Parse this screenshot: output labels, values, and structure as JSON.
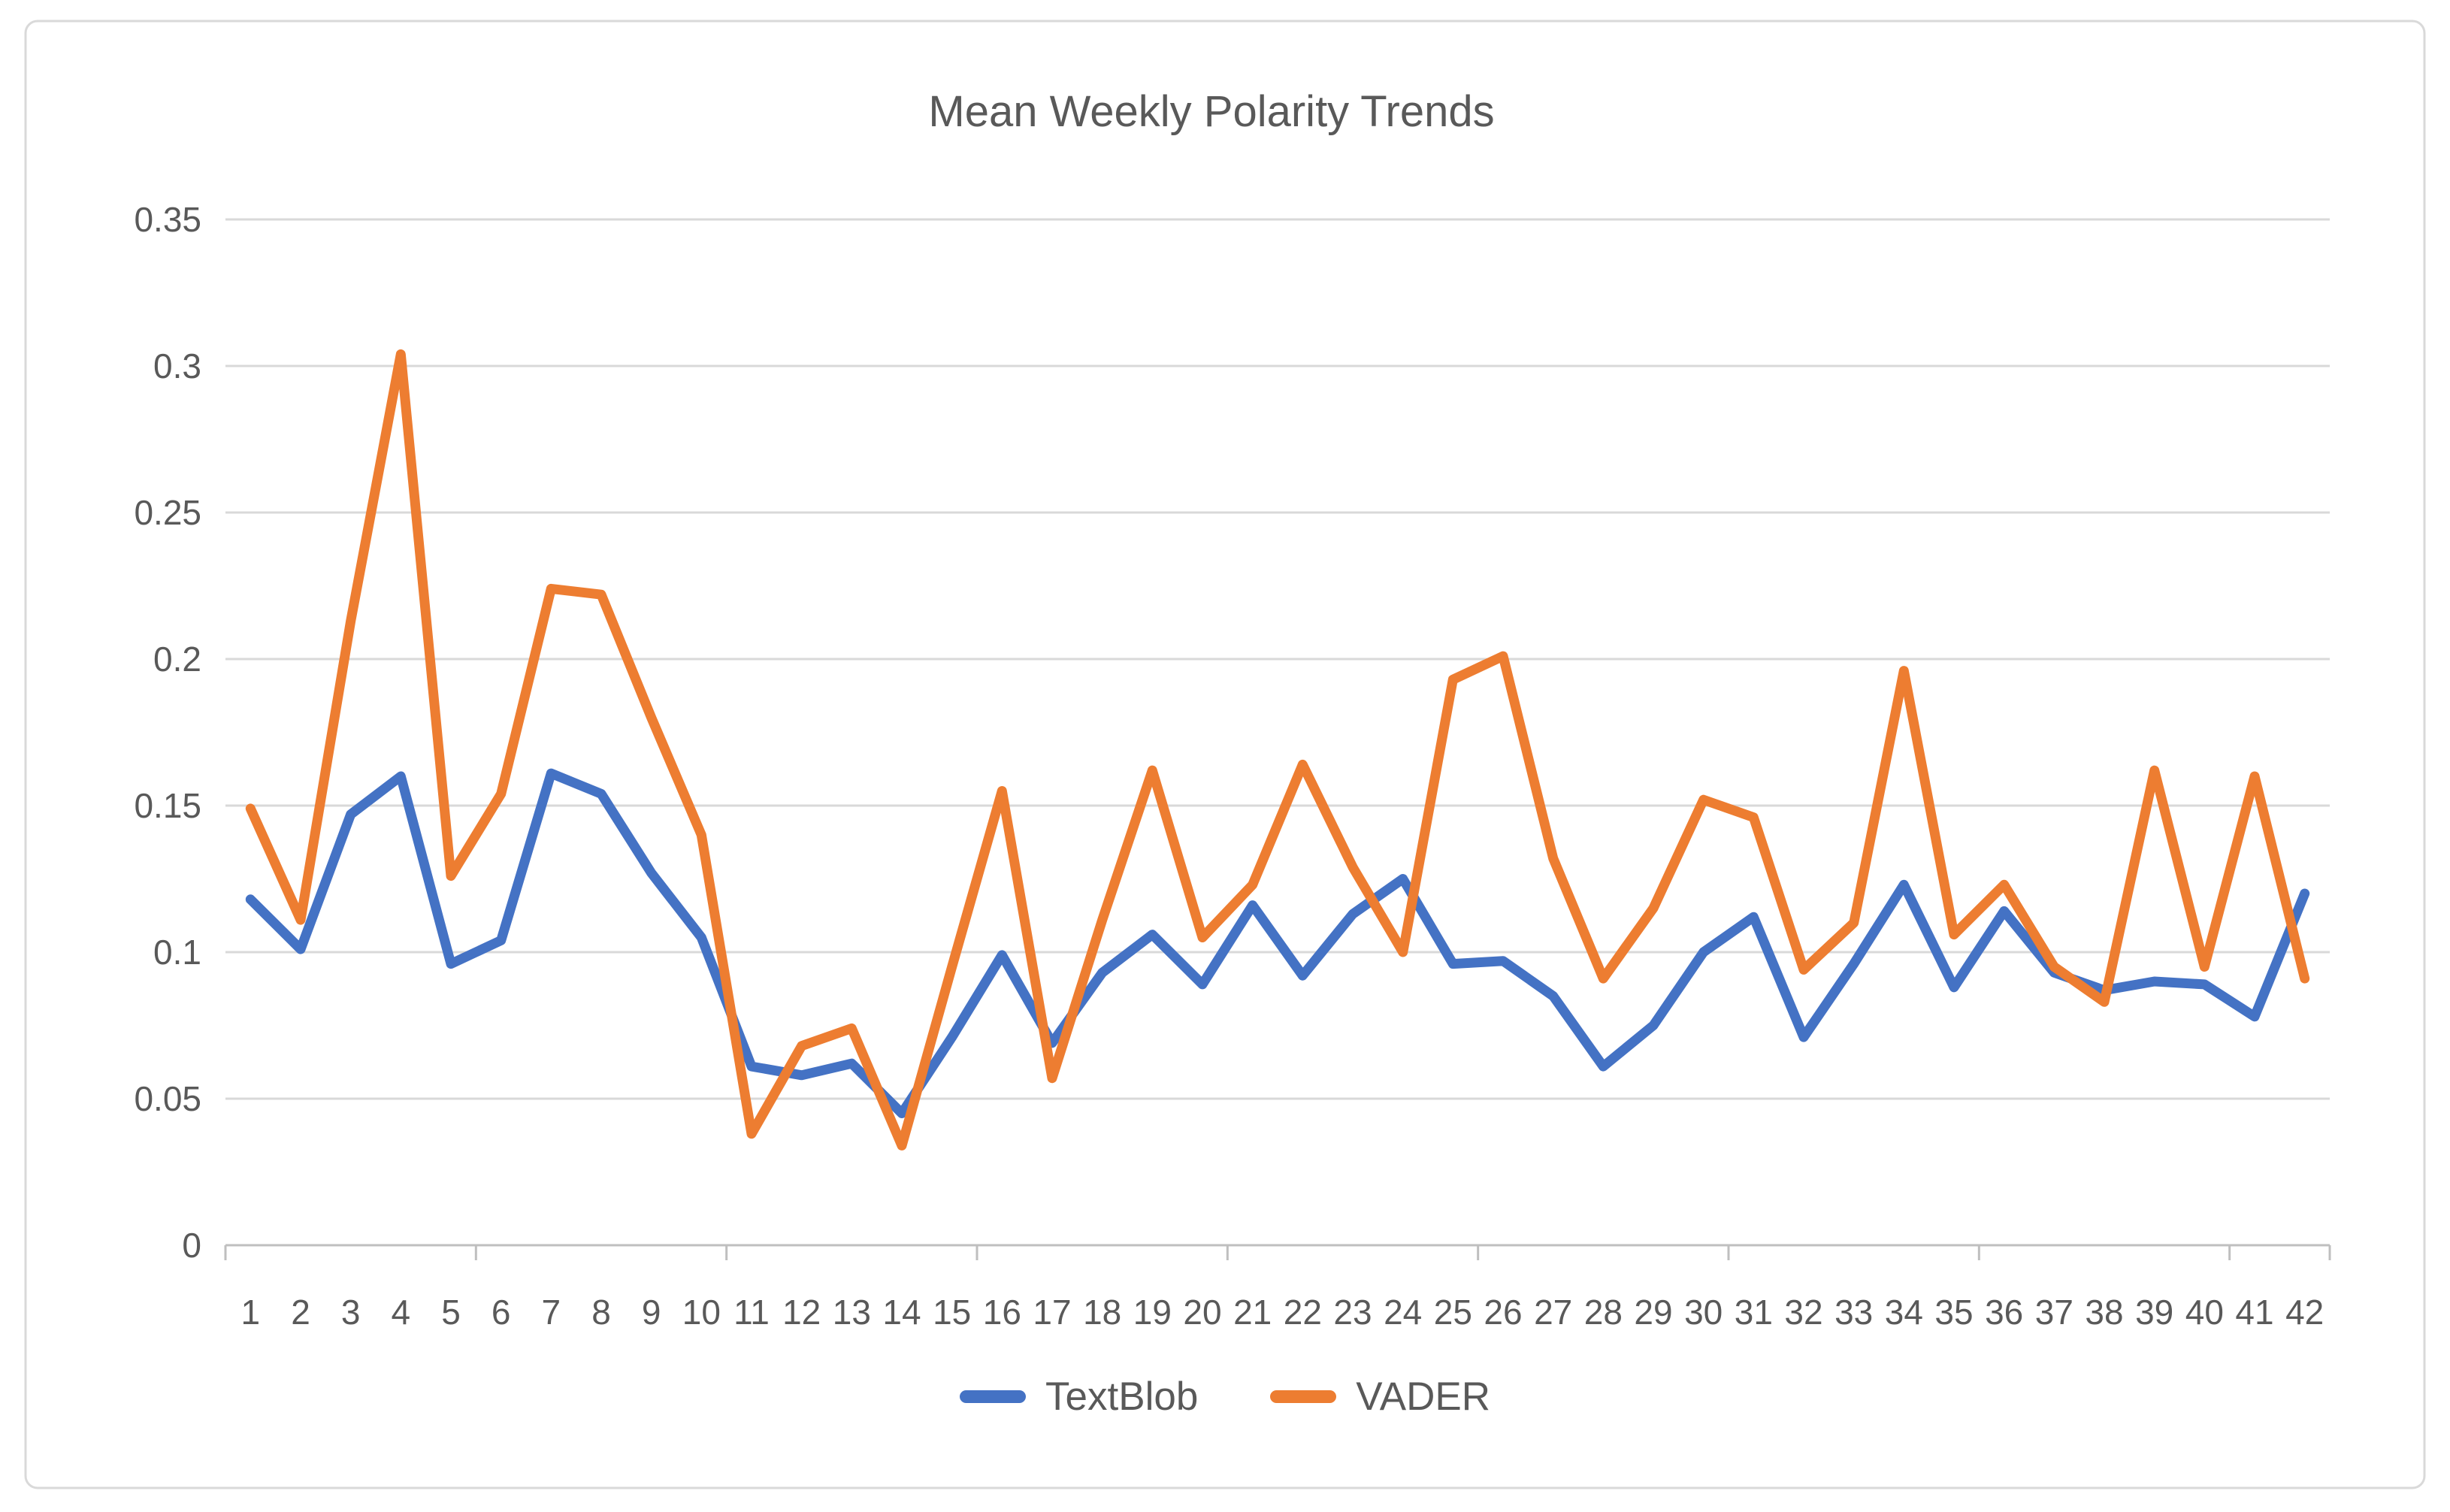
{
  "chart_data": {
    "type": "line",
    "title": "Mean Weekly Polarity Trends",
    "xlabel": "",
    "ylabel": "",
    "categories": [
      1,
      2,
      3,
      4,
      5,
      6,
      7,
      8,
      9,
      10,
      11,
      12,
      13,
      14,
      15,
      16,
      17,
      18,
      19,
      20,
      21,
      22,
      23,
      24,
      25,
      26,
      27,
      28,
      29,
      30,
      31,
      32,
      33,
      34,
      35,
      36,
      37,
      38,
      39,
      40,
      41,
      42
    ],
    "series": [
      {
        "name": "TextBlob",
        "color": "#4472C4",
        "values": [
          0.118,
          0.101,
          0.147,
          0.16,
          0.096,
          0.104,
          0.161,
          0.154,
          0.127,
          0.105,
          0.061,
          0.058,
          0.062,
          0.045,
          0.071,
          0.099,
          0.069,
          0.093,
          0.106,
          0.089,
          0.116,
          0.092,
          0.113,
          0.125,
          0.096,
          0.097,
          0.085,
          0.061,
          0.075,
          0.1,
          0.112,
          0.071,
          0.096,
          0.123,
          0.088,
          0.114,
          0.093,
          0.087,
          0.09,
          0.089,
          0.078,
          0.12
        ]
      },
      {
        "name": "VADER",
        "color": "#ED7D31",
        "values": [
          0.149,
          0.111,
          0.213,
          0.304,
          0.126,
          0.154,
          0.224,
          0.222,
          0.18,
          0.14,
          0.038,
          0.068,
          0.074,
          0.034,
          0.095,
          0.155,
          0.057,
          0.111,
          0.162,
          0.105,
          0.123,
          0.164,
          0.129,
          0.1,
          0.193,
          0.201,
          0.132,
          0.091,
          0.115,
          0.152,
          0.146,
          0.094,
          0.11,
          0.196,
          0.106,
          0.123,
          0.095,
          0.083,
          0.162,
          0.095,
          0.16,
          0.091
        ]
      }
    ],
    "ylim": [
      0,
      0.35
    ],
    "ytick_labels": [
      "0",
      "0.05",
      "0.1",
      "0.15",
      "0.2",
      "0.25",
      "0.3",
      "0.35"
    ],
    "ytick_values": [
      0,
      0.05,
      0.1,
      0.15,
      0.2,
      0.25,
      0.3,
      0.35
    ],
    "grid": "horizontal",
    "legend_position": "bottom",
    "colors": {
      "grid": "#D9D9D9",
      "axis": "#BFBFBF",
      "text": "#595959",
      "border": "#D9D9D9",
      "background": "#FFFFFF"
    }
  }
}
